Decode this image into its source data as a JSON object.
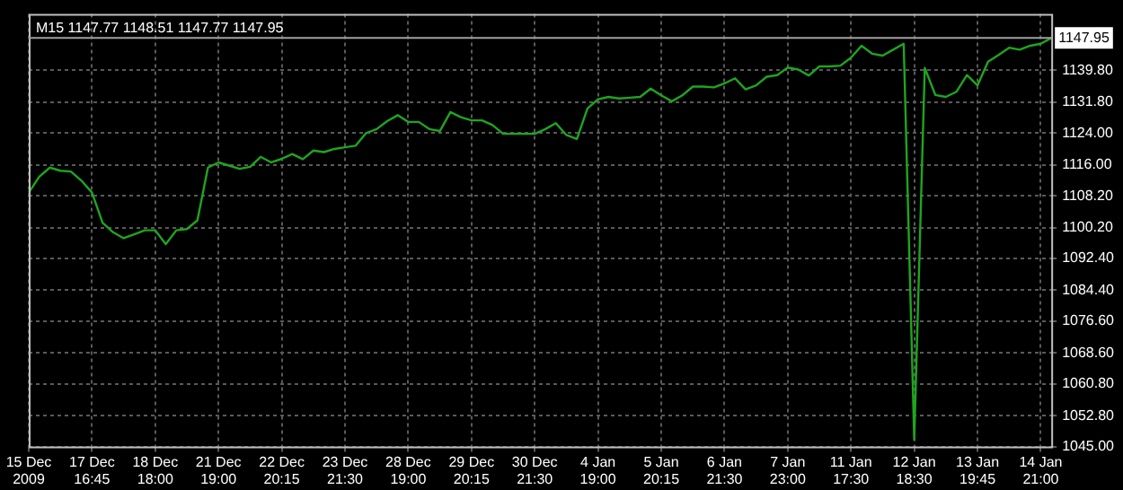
{
  "chart_data": {
    "type": "line",
    "title": "M15 1147.77 1148.51 1147.77 1147.95",
    "categories": [
      "15 Dec 2009",
      null,
      null,
      null,
      null,
      null,
      "17 Dec 16:45",
      null,
      null,
      null,
      null,
      null,
      "18 Dec 18:00",
      null,
      null,
      null,
      null,
      null,
      "21 Dec 19:00",
      null,
      null,
      null,
      null,
      null,
      "22 Dec 20:15",
      null,
      null,
      null,
      null,
      null,
      "23 Dec 21:30",
      null,
      null,
      null,
      null,
      null,
      "28 Dec 19:00",
      null,
      null,
      null,
      null,
      null,
      "29 Dec 20:15",
      null,
      null,
      null,
      null,
      null,
      "30 Dec 21:30",
      null,
      null,
      null,
      null,
      null,
      "4 Jan 19:00",
      null,
      null,
      null,
      null,
      null,
      "5 Jan 20:15",
      null,
      null,
      null,
      null,
      null,
      "6 Jan 21:30",
      null,
      null,
      null,
      null,
      null,
      "7 Jan 23:00",
      null,
      null,
      null,
      null,
      null,
      "11 Jan 17:30",
      null,
      null,
      null,
      null,
      null,
      "12 Jan 18:30",
      null,
      null,
      null,
      null,
      null,
      "13 Jan 19:45",
      null,
      null,
      null,
      null,
      null,
      "14 Jan 21:00",
      null
    ],
    "series": [
      {
        "color": "#1fa51f",
        "values": [
          1109.0,
          1113.0,
          1115.3,
          1114.5,
          1114.3,
          1112.0,
          1109.0,
          1101.4,
          1099.0,
          1097.5,
          1098.5,
          1099.5,
          1099.5,
          1096.0,
          1099.5,
          1099.8,
          1102.0,
          1115.3,
          1116.6,
          1115.8,
          1115.0,
          1115.5,
          1118.0,
          1116.6,
          1117.5,
          1118.7,
          1117.4,
          1119.6,
          1119.2,
          1120.0,
          1120.4,
          1120.8,
          1124.0,
          1125.0,
          1127.0,
          1128.5,
          1126.8,
          1126.8,
          1125.0,
          1124.5,
          1129.3,
          1128.0,
          1127.2,
          1127.2,
          1126.0,
          1123.8,
          1123.8,
          1123.8,
          1123.8,
          1125.0,
          1126.5,
          1123.5,
          1122.5,
          1130.2,
          1132.5,
          1133.1,
          1132.7,
          1132.9,
          1133.1,
          1135.2,
          1133.5,
          1132.0,
          1133.5,
          1135.7,
          1135.7,
          1135.5,
          1136.5,
          1137.8,
          1135.0,
          1136.0,
          1138.2,
          1138.6,
          1140.5,
          1140.0,
          1138.5,
          1140.8,
          1140.8,
          1141.0,
          1143.0,
          1146.0,
          1144.0,
          1143.5,
          1145.0,
          1146.5,
          1046.7,
          1140.4,
          1133.6,
          1133.1,
          1134.4,
          1138.6,
          1136.0,
          1142.0,
          1143.7,
          1145.5,
          1145.0,
          1146.0,
          1146.5,
          1147.95
        ]
      }
    ],
    "ylim": [
      1045,
      1154
    ],
    "yticks": [
      {
        "value": 1045,
        "label": "1045.00"
      },
      {
        "value": 1052.8,
        "label": "1052.80"
      },
      {
        "value": 1060.8,
        "label": "1060.80"
      },
      {
        "value": 1068.6,
        "label": "1068.60"
      },
      {
        "value": 1076.6,
        "label": "1076.60"
      },
      {
        "value": 1084.4,
        "label": "1084.40"
      },
      {
        "value": 1092.4,
        "label": "1092.40"
      },
      {
        "value": 1100.2,
        "label": "1100.20"
      },
      {
        "value": 1108.2,
        "label": "1108.20"
      },
      {
        "value": 1116,
        "label": "1116.00"
      },
      {
        "value": 1124,
        "label": "1124.00"
      },
      {
        "value": 1131.8,
        "label": "1131.80"
      },
      {
        "value": 1139.8,
        "label": "1139.80"
      }
    ],
    "ref_lines": [
      {
        "axis": "y",
        "value": 1147.95,
        "label": "1147.95",
        "color": "#a0a0a0"
      }
    ],
    "grid": true,
    "legend": false,
    "marker": "none",
    "line_style": "solid"
  }
}
